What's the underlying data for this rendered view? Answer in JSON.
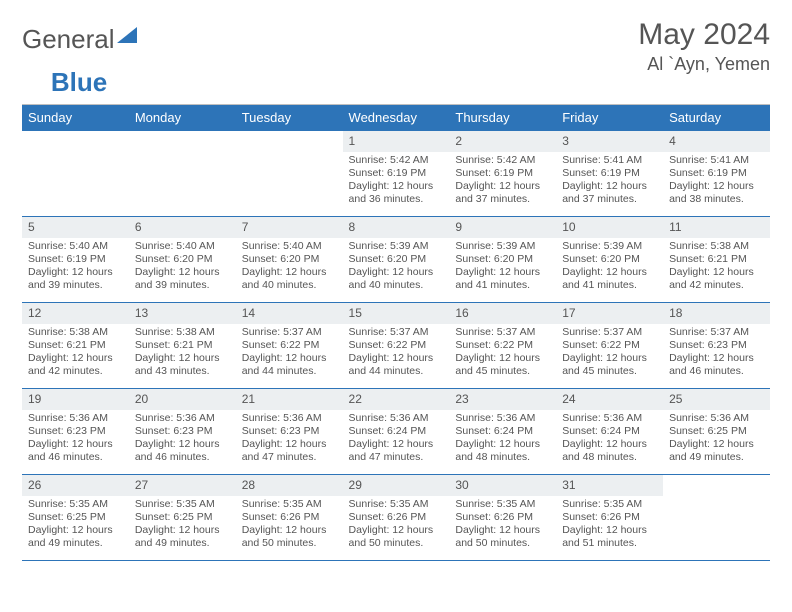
{
  "logo": {
    "text1": "General",
    "text2": "Blue"
  },
  "title": "May 2024",
  "location": "Al `Ayn, Yemen",
  "colors": {
    "header_bg": "#2d74b8",
    "header_fg": "#ffffff",
    "daynum_bg": "#eceff1",
    "border": "#2d74b8",
    "text": "#555555"
  },
  "weekdays": [
    "Sunday",
    "Monday",
    "Tuesday",
    "Wednesday",
    "Thursday",
    "Friday",
    "Saturday"
  ],
  "weeks": [
    [
      null,
      null,
      null,
      {
        "n": "1",
        "sr": "5:42 AM",
        "ss": "6:19 PM",
        "dl": "12 hours and 36 minutes."
      },
      {
        "n": "2",
        "sr": "5:42 AM",
        "ss": "6:19 PM",
        "dl": "12 hours and 37 minutes."
      },
      {
        "n": "3",
        "sr": "5:41 AM",
        "ss": "6:19 PM",
        "dl": "12 hours and 37 minutes."
      },
      {
        "n": "4",
        "sr": "5:41 AM",
        "ss": "6:19 PM",
        "dl": "12 hours and 38 minutes."
      }
    ],
    [
      {
        "n": "5",
        "sr": "5:40 AM",
        "ss": "6:19 PM",
        "dl": "12 hours and 39 minutes."
      },
      {
        "n": "6",
        "sr": "5:40 AM",
        "ss": "6:20 PM",
        "dl": "12 hours and 39 minutes."
      },
      {
        "n": "7",
        "sr": "5:40 AM",
        "ss": "6:20 PM",
        "dl": "12 hours and 40 minutes."
      },
      {
        "n": "8",
        "sr": "5:39 AM",
        "ss": "6:20 PM",
        "dl": "12 hours and 40 minutes."
      },
      {
        "n": "9",
        "sr": "5:39 AM",
        "ss": "6:20 PM",
        "dl": "12 hours and 41 minutes."
      },
      {
        "n": "10",
        "sr": "5:39 AM",
        "ss": "6:20 PM",
        "dl": "12 hours and 41 minutes."
      },
      {
        "n": "11",
        "sr": "5:38 AM",
        "ss": "6:21 PM",
        "dl": "12 hours and 42 minutes."
      }
    ],
    [
      {
        "n": "12",
        "sr": "5:38 AM",
        "ss": "6:21 PM",
        "dl": "12 hours and 42 minutes."
      },
      {
        "n": "13",
        "sr": "5:38 AM",
        "ss": "6:21 PM",
        "dl": "12 hours and 43 minutes."
      },
      {
        "n": "14",
        "sr": "5:37 AM",
        "ss": "6:22 PM",
        "dl": "12 hours and 44 minutes."
      },
      {
        "n": "15",
        "sr": "5:37 AM",
        "ss": "6:22 PM",
        "dl": "12 hours and 44 minutes."
      },
      {
        "n": "16",
        "sr": "5:37 AM",
        "ss": "6:22 PM",
        "dl": "12 hours and 45 minutes."
      },
      {
        "n": "17",
        "sr": "5:37 AM",
        "ss": "6:22 PM",
        "dl": "12 hours and 45 minutes."
      },
      {
        "n": "18",
        "sr": "5:37 AM",
        "ss": "6:23 PM",
        "dl": "12 hours and 46 minutes."
      }
    ],
    [
      {
        "n": "19",
        "sr": "5:36 AM",
        "ss": "6:23 PM",
        "dl": "12 hours and 46 minutes."
      },
      {
        "n": "20",
        "sr": "5:36 AM",
        "ss": "6:23 PM",
        "dl": "12 hours and 46 minutes."
      },
      {
        "n": "21",
        "sr": "5:36 AM",
        "ss": "6:23 PM",
        "dl": "12 hours and 47 minutes."
      },
      {
        "n": "22",
        "sr": "5:36 AM",
        "ss": "6:24 PM",
        "dl": "12 hours and 47 minutes."
      },
      {
        "n": "23",
        "sr": "5:36 AM",
        "ss": "6:24 PM",
        "dl": "12 hours and 48 minutes."
      },
      {
        "n": "24",
        "sr": "5:36 AM",
        "ss": "6:24 PM",
        "dl": "12 hours and 48 minutes."
      },
      {
        "n": "25",
        "sr": "5:36 AM",
        "ss": "6:25 PM",
        "dl": "12 hours and 49 minutes."
      }
    ],
    [
      {
        "n": "26",
        "sr": "5:35 AM",
        "ss": "6:25 PM",
        "dl": "12 hours and 49 minutes."
      },
      {
        "n": "27",
        "sr": "5:35 AM",
        "ss": "6:25 PM",
        "dl": "12 hours and 49 minutes."
      },
      {
        "n": "28",
        "sr": "5:35 AM",
        "ss": "6:26 PM",
        "dl": "12 hours and 50 minutes."
      },
      {
        "n": "29",
        "sr": "5:35 AM",
        "ss": "6:26 PM",
        "dl": "12 hours and 50 minutes."
      },
      {
        "n": "30",
        "sr": "5:35 AM",
        "ss": "6:26 PM",
        "dl": "12 hours and 50 minutes."
      },
      {
        "n": "31",
        "sr": "5:35 AM",
        "ss": "6:26 PM",
        "dl": "12 hours and 51 minutes."
      },
      null
    ]
  ],
  "labels": {
    "sunrise": "Sunrise: ",
    "sunset": "Sunset: ",
    "daylight": "Daylight: "
  }
}
